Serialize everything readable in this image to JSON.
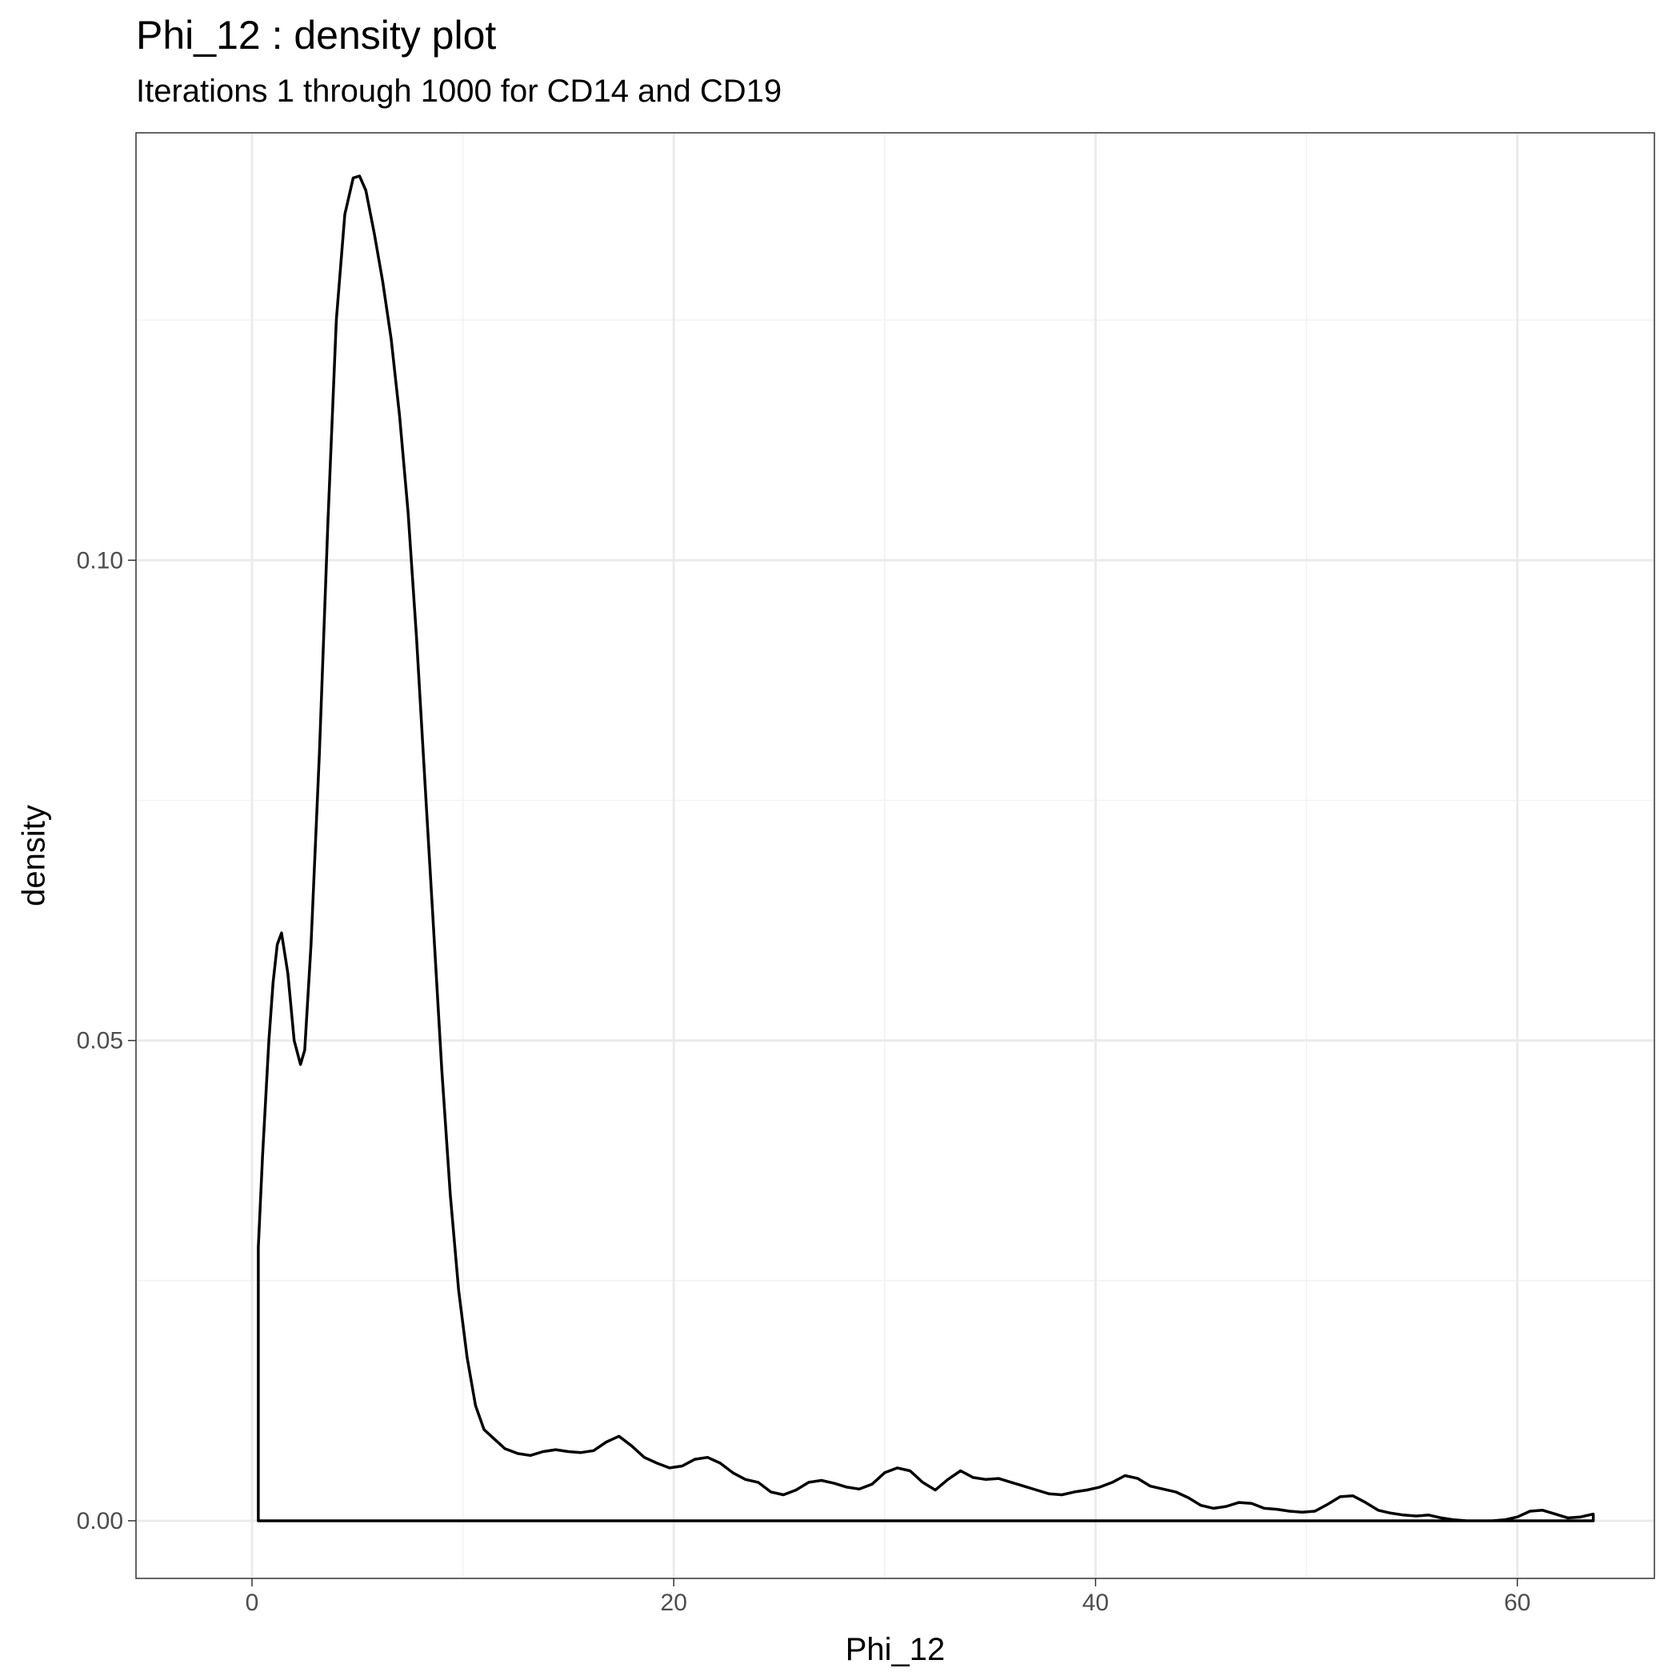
{
  "chart_data": {
    "type": "area",
    "title": "Phi_12 : density plot",
    "subtitle": "Iterations 1 through 1000 for CD14 and CD19",
    "xlabel": "Phi_12",
    "ylabel": "density",
    "xlim": [
      -5.5,
      66.5
    ],
    "ylim": [
      -0.006,
      0.1445
    ],
    "x_ticks": [
      0,
      20,
      40,
      60
    ],
    "x_tick_labels": [
      "0",
      "20",
      "40",
      "60"
    ],
    "y_ticks": [
      0.0,
      0.05,
      0.1
    ],
    "y_tick_labels": [
      "0.00",
      "0.05",
      "0.10"
    ],
    "x_minor": [
      10,
      30,
      50
    ],
    "y_minor": [
      0.025,
      0.075,
      0.125
    ],
    "grid": true,
    "legend": "none",
    "x": [
      0.3,
      0.5,
      0.8,
      1.0,
      1.2,
      1.4,
      1.7,
      2.0,
      2.3,
      2.5,
      2.8,
      3.2,
      3.6,
      4.0,
      4.4,
      4.8,
      5.1,
      5.4,
      5.8,
      6.2,
      6.6,
      7.0,
      7.4,
      7.8,
      8.2,
      8.6,
      9.0,
      9.4,
      9.8,
      10.2,
      10.6,
      11.0,
      11.5,
      12.0,
      12.6,
      13.2,
      13.8,
      14.4,
      15.0,
      15.6,
      16.2,
      16.8,
      17.4,
      18.0,
      18.6,
      19.2,
      19.8,
      20.4,
      21.0,
      21.6,
      22.2,
      22.8,
      23.4,
      24.0,
      24.6,
      25.2,
      25.8,
      26.4,
      27.0,
      27.6,
      28.2,
      28.8,
      29.4,
      30.0,
      30.6,
      31.2,
      31.8,
      32.4,
      33.0,
      33.6,
      34.2,
      34.8,
      35.4,
      36.0,
      36.6,
      37.2,
      37.8,
      38.4,
      39.0,
      39.6,
      40.2,
      40.8,
      41.4,
      42.0,
      42.6,
      43.2,
      43.8,
      44.4,
      45.0,
      45.6,
      46.2,
      46.8,
      47.4,
      48.0,
      48.6,
      49.2,
      49.8,
      50.4,
      51.0,
      51.6,
      52.2,
      52.8,
      53.4,
      54.0,
      54.6,
      55.2,
      55.8,
      56.4,
      57.0,
      57.6,
      58.2,
      58.8,
      59.4,
      60.0,
      60.6,
      61.2,
      61.8,
      62.4,
      63.0,
      63.6
    ],
    "y": [
      0.0285,
      0.038,
      0.05,
      0.056,
      0.06,
      0.0612,
      0.057,
      0.05,
      0.0475,
      0.049,
      0.06,
      0.08,
      0.104,
      0.125,
      0.136,
      0.1398,
      0.14,
      0.1385,
      0.134,
      0.129,
      0.123,
      0.115,
      0.105,
      0.092,
      0.077,
      0.062,
      0.047,
      0.034,
      0.024,
      0.017,
      0.012,
      0.0095,
      0.0085,
      0.0075,
      0.007,
      0.0068,
      0.0072,
      0.0074,
      0.0072,
      0.0071,
      0.0073,
      0.0082,
      0.0088,
      0.0078,
      0.0066,
      0.006,
      0.0055,
      0.0057,
      0.0064,
      0.0066,
      0.006,
      0.005,
      0.0043,
      0.004,
      0.003,
      0.0027,
      0.0032,
      0.004,
      0.0042,
      0.0039,
      0.0035,
      0.0033,
      0.0038,
      0.005,
      0.0055,
      0.0052,
      0.004,
      0.0032,
      0.0043,
      0.0052,
      0.0045,
      0.0043,
      0.0044,
      0.004,
      0.0036,
      0.0032,
      0.0028,
      0.0027,
      0.003,
      0.0032,
      0.0035,
      0.004,
      0.0047,
      0.0044,
      0.0036,
      0.0033,
      0.003,
      0.0024,
      0.0016,
      0.0013,
      0.0015,
      0.0019,
      0.0018,
      0.0013,
      0.0012,
      0.001,
      0.0009,
      0.001,
      0.0017,
      0.0025,
      0.0026,
      0.0019,
      0.0011,
      0.0008,
      0.0006,
      0.0005,
      0.0006,
      0.0003,
      0.0001,
      0.0,
      0.0,
      0.0,
      0.0001,
      0.0004,
      0.001,
      0.0011,
      0.0007,
      0.0003,
      0.0004,
      0.0007
    ],
    "line_color": "#000000",
    "panel_border_color": "#333333",
    "grid_major_color": "#ebebeb",
    "grid_minor_color": "#f2f2f2"
  }
}
